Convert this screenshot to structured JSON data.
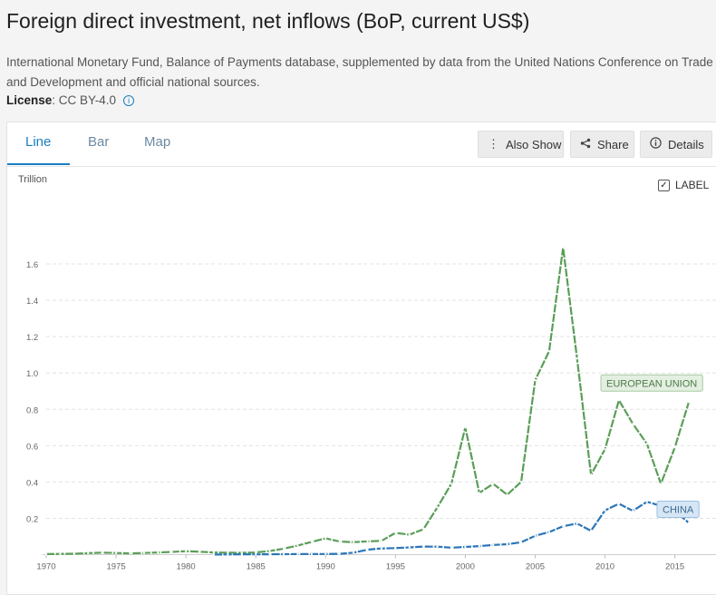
{
  "page": {
    "title": "Foreign direct investment, net inflows (BoP, current US$)",
    "source_line1": "International Monetary Fund, Balance of Payments database, supplemented by data from the United Nations Conference on Trade",
    "source_line2": "and Development and official national sources.",
    "license_label": "License",
    "license_value": " : CC BY-4.0",
    "info_icon": "info-icon"
  },
  "tabs": [
    {
      "label": "Line",
      "active": true
    },
    {
      "label": "Bar",
      "active": false
    },
    {
      "label": "Map",
      "active": false
    }
  ],
  "toolbar": {
    "also_show": "Also Show",
    "also_show_icon": "vertical-dots-icon",
    "share": "Share",
    "share_icon": "share-icon",
    "details": "Details",
    "details_icon": "info-icon"
  },
  "chart_controls": {
    "unit": "Trillion",
    "label_toggle": "LABEL",
    "label_checked": true
  },
  "chart_data": {
    "type": "line",
    "ylabel": "Trillion",
    "xlim": [
      1970,
      2016
    ],
    "ylim": [
      0,
      1.8
    ],
    "x_ticks": [
      1970,
      1975,
      1980,
      1985,
      1990,
      1995,
      2000,
      2005,
      2010,
      2015
    ],
    "y_ticks": [
      0.2,
      0.4,
      0.6,
      0.8,
      1.0,
      1.2,
      1.4,
      1.6
    ],
    "y_tick_labels": [
      "0.2",
      "0.4",
      "0.6",
      "0.8",
      "1.0",
      "1.2",
      "1.4",
      "1.6"
    ],
    "grid": true,
    "series": [
      {
        "name": "EUROPEAN UNION",
        "color": "#5a9e58",
        "label_fill": "#e3efe0",
        "label_border": "#a8cba2",
        "points": [
          [
            1970,
            0.003
          ],
          [
            1971,
            0.004
          ],
          [
            1972,
            0.005
          ],
          [
            1973,
            0.008
          ],
          [
            1974,
            0.011
          ],
          [
            1975,
            0.009
          ],
          [
            1976,
            0.007
          ],
          [
            1977,
            0.009
          ],
          [
            1978,
            0.012
          ],
          [
            1979,
            0.015
          ],
          [
            1980,
            0.019
          ],
          [
            1981,
            0.016
          ],
          [
            1982,
            0.012
          ],
          [
            1983,
            0.011
          ],
          [
            1984,
            0.01
          ],
          [
            1985,
            0.012
          ],
          [
            1986,
            0.02
          ],
          [
            1987,
            0.033
          ],
          [
            1988,
            0.05
          ],
          [
            1989,
            0.07
          ],
          [
            1990,
            0.09
          ],
          [
            1991,
            0.072
          ],
          [
            1992,
            0.069
          ],
          [
            1993,
            0.073
          ],
          [
            1994,
            0.076
          ],
          [
            1995,
            0.12
          ],
          [
            1996,
            0.11
          ],
          [
            1997,
            0.14
          ],
          [
            1998,
            0.26
          ],
          [
            1999,
            0.39
          ],
          [
            2000,
            0.7
          ],
          [
            2001,
            0.34
          ],
          [
            2002,
            0.39
          ],
          [
            2003,
            0.33
          ],
          [
            2004,
            0.4
          ],
          [
            2005,
            0.96
          ],
          [
            2006,
            1.12
          ],
          [
            2007,
            1.69
          ],
          [
            2008,
            1.08
          ],
          [
            2009,
            0.44
          ],
          [
            2010,
            0.58
          ],
          [
            2011,
            0.85
          ],
          [
            2012,
            0.72
          ],
          [
            2013,
            0.61
          ],
          [
            2014,
            0.39
          ],
          [
            2015,
            0.59
          ],
          [
            2016,
            0.84
          ]
        ]
      },
      {
        "name": "CHINA",
        "color": "#2b76b8",
        "label_fill": "#d6e6f4",
        "label_border": "#9bbfe0",
        "points": [
          [
            1982,
            0.0004
          ],
          [
            1983,
            0.0009
          ],
          [
            1984,
            0.0013
          ],
          [
            1985,
            0.0017
          ],
          [
            1986,
            0.0019
          ],
          [
            1987,
            0.0023
          ],
          [
            1988,
            0.0032
          ],
          [
            1989,
            0.0034
          ],
          [
            1990,
            0.0035
          ],
          [
            1991,
            0.0044
          ],
          [
            1992,
            0.0112
          ],
          [
            1993,
            0.0275
          ],
          [
            1994,
            0.0338
          ],
          [
            1995,
            0.0358
          ],
          [
            1996,
            0.0401
          ],
          [
            1997,
            0.0442
          ],
          [
            1998,
            0.0438
          ],
          [
            1999,
            0.0383
          ],
          [
            2000,
            0.0423
          ],
          [
            2001,
            0.047
          ],
          [
            2002,
            0.0531
          ],
          [
            2003,
            0.0576
          ],
          [
            2004,
            0.068
          ],
          [
            2005,
            0.104
          ],
          [
            2006,
            0.1241
          ],
          [
            2007,
            0.1562
          ],
          [
            2008,
            0.1715
          ],
          [
            2009,
            0.1311
          ],
          [
            2010,
            0.2435
          ],
          [
            2011,
            0.2801
          ],
          [
            2012,
            0.2412
          ],
          [
            2013,
            0.2909
          ],
          [
            2014,
            0.2681
          ],
          [
            2015,
            0.242
          ],
          [
            2016,
            0.1747
          ]
        ]
      }
    ]
  }
}
